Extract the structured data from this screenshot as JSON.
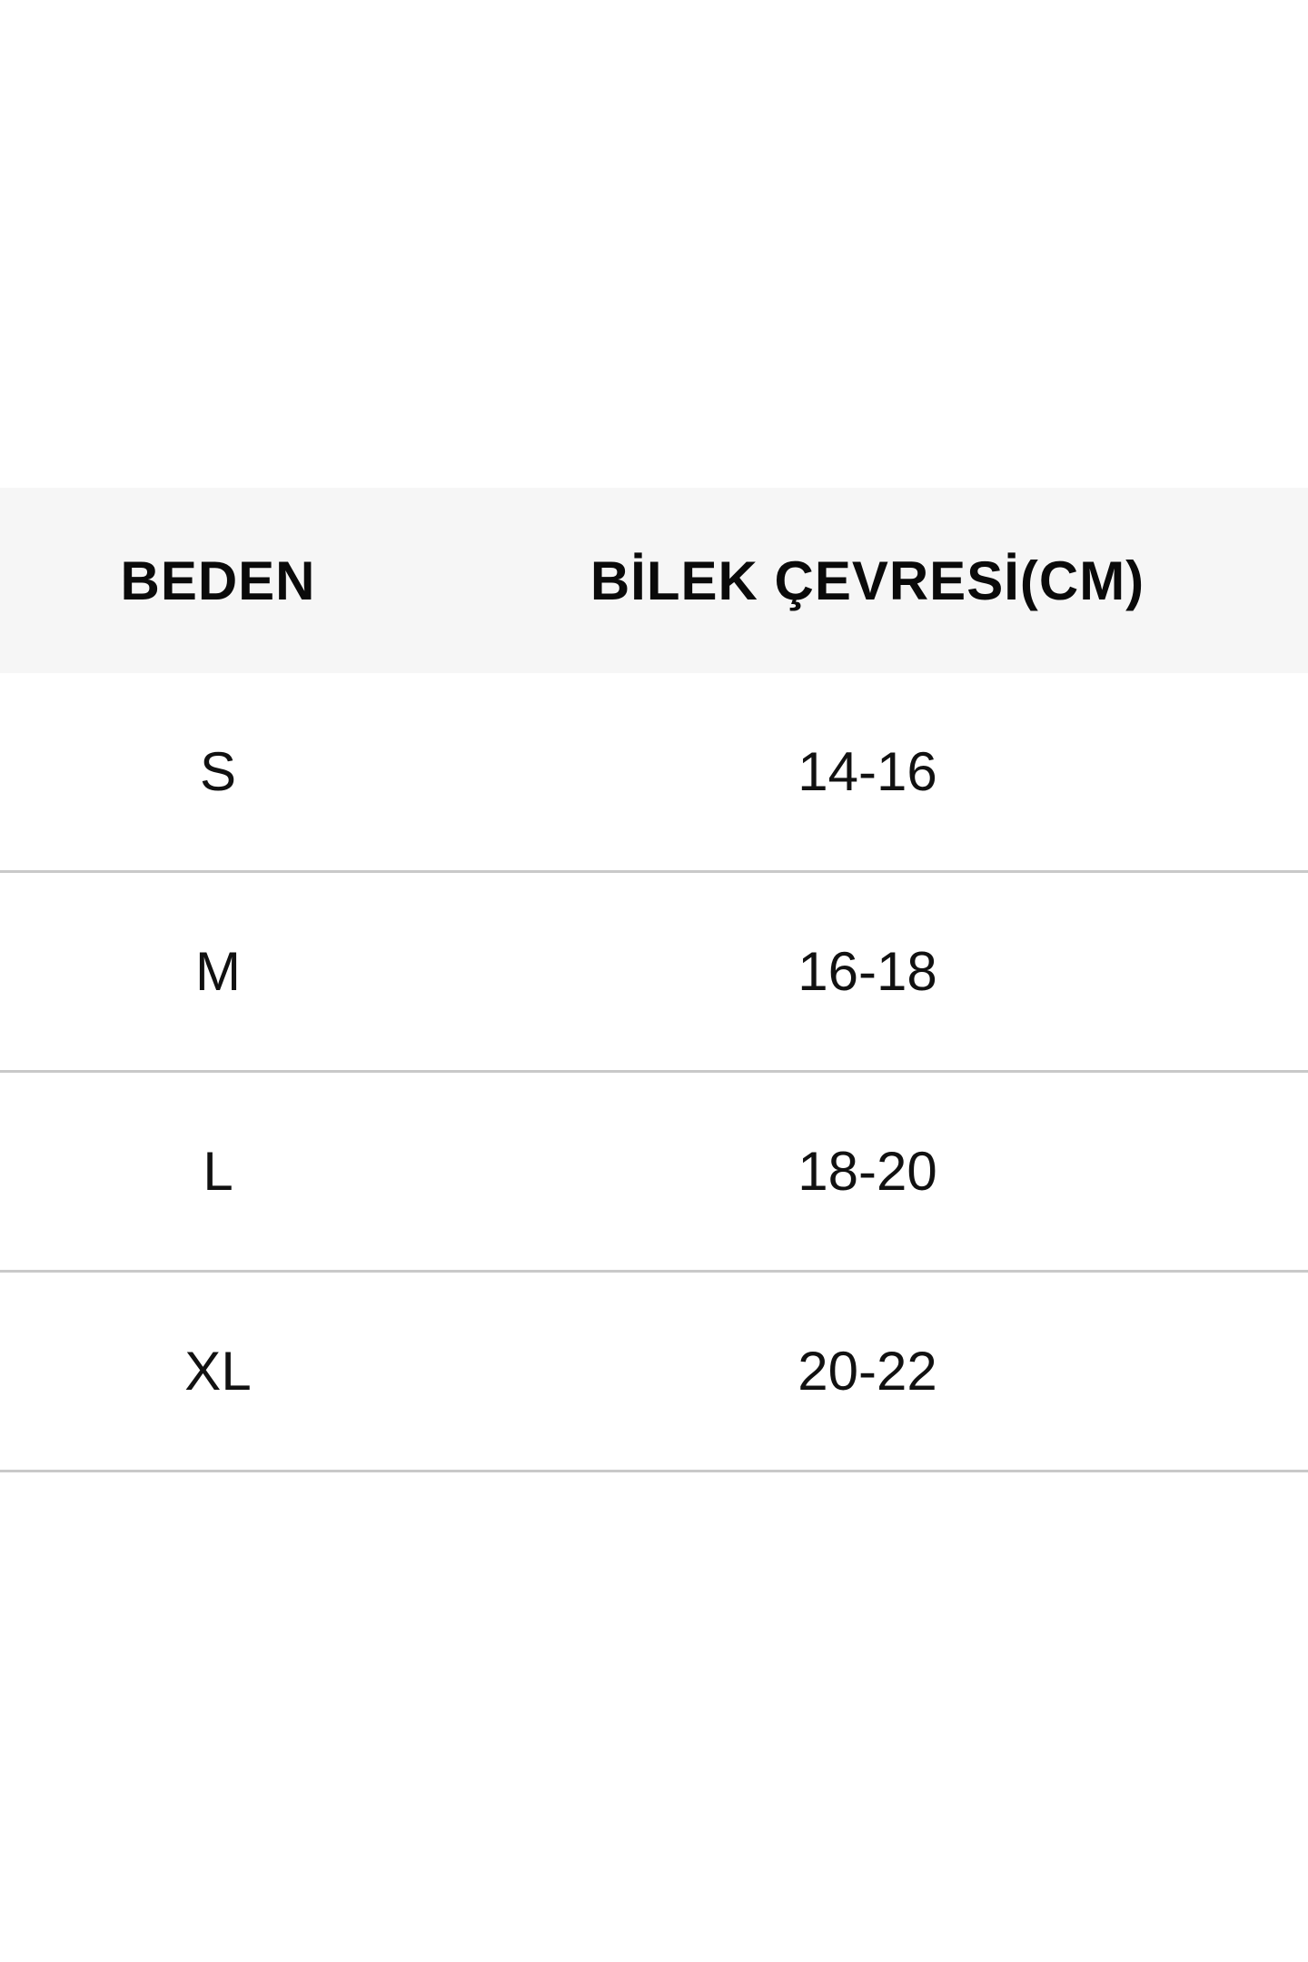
{
  "table": {
    "headers": [
      "BEDEN",
      "BİLEK ÇEVRESİ(CM)"
    ],
    "rows": [
      [
        "S",
        "14-16"
      ],
      [
        "M",
        "16-18"
      ],
      [
        "L",
        "18-20"
      ],
      [
        "XL",
        "20-22"
      ]
    ]
  },
  "colors": {
    "header_bg": "#f6f6f6",
    "divider": "#c9c9c9",
    "text": "#111111"
  }
}
